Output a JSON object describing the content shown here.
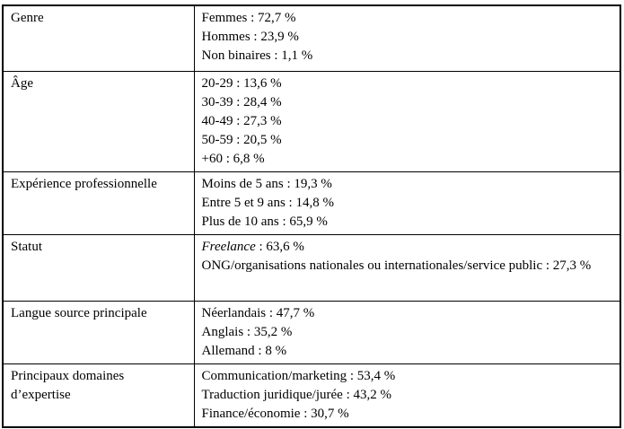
{
  "table": {
    "border_color": "#000000",
    "background_color": "#ffffff",
    "rows": [
      {
        "label": "Genre",
        "values": [
          "Femmes : 72,7 %",
          "Hommes : 23,9 %",
          "Non binaires : 1,1 %"
        ]
      },
      {
        "label": "Âge",
        "values": [
          "20-29 : 13,6 %",
          "30-39 : 28,4 %",
          "40-49 : 27,3 %",
          "50-59 : 20,5 %",
          "+60 : 6,8 %"
        ]
      },
      {
        "label": "Expérience professionnelle",
        "values": [
          "Moins de 5 ans : 19,3 %",
          "Entre 5 et 9 ans : 14,8 %",
          "Plus de 10 ans : 65,9 %"
        ]
      },
      {
        "label": "Statut",
        "values": [
          {
            "segments": [
              {
                "text": "Freelance",
                "italic": true
              },
              {
                "text": " : 63,6 %",
                "italic": false
              }
            ]
          },
          "ONG/organisations nationales ou internationales/service public : 27,3 %"
        ]
      },
      {
        "label": "Langue source principale",
        "values": [
          "Néerlandais : 47,7 %",
          "Anglais : 35,2 %",
          "Allemand : 8 %"
        ]
      },
      {
        "label": "Principaux domaines d’expertise",
        "values": [
          "Communication/marketing : 53,4 %",
          "Traduction juridique/jurée : 43,2 %",
          "Finance/économie : 30,7 %"
        ]
      }
    ]
  }
}
